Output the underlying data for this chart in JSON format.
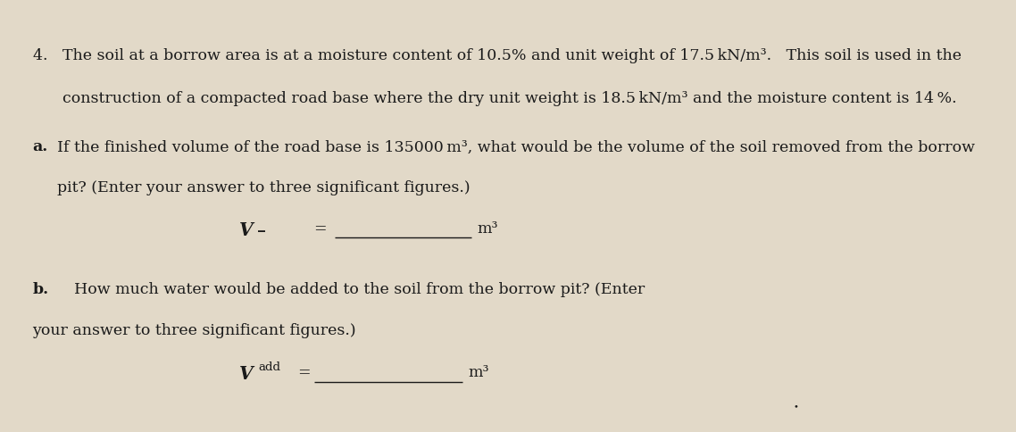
{
  "background_color": "#e2d9c8",
  "text_color": "#1a1a1a",
  "fig_width": 11.38,
  "fig_height": 4.84,
  "font_size_main": 12.5,
  "line1_num": "4.",
  "line1_rest": "  The soil at a borrow area is at a moisture content of 10.5% and unit weight of 17.5 kN/m³.   This soil is used in the",
  "line2": "     construction of a compacted road base where the dry unit weight is 18.5 kN/m³ and the moisture content is 14 %.",
  "line3a_label": "a.",
  "line3a_text": "  If the finished volume of the road base is 135000 m³, what would be the volume of the soil removed from the borrow",
  "line4a": "     pit? (Enter your answer to three significant figures.)",
  "line6b_label": "b.",
  "line6b_text": "   How much water would be added to the soil from the borrow pit? (Enter",
  "line7b": "your answer to three significant figures.)"
}
